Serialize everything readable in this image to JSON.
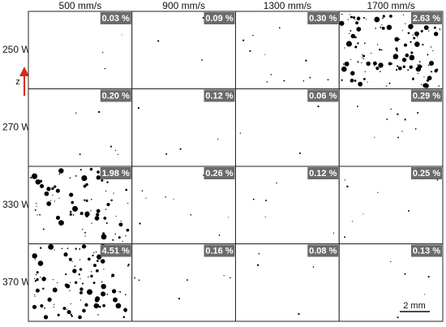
{
  "columns": [
    "500 mm/s",
    "900 mm/s",
    "1300 mm/s",
    "1700 mm/s"
  ],
  "rows": [
    {
      "label": "250 W",
      "porosity": [
        "0.03 %",
        "0.09 %",
        "0.30 %",
        "2.63 %"
      ]
    },
    {
      "label": "270 W",
      "porosity": [
        "0.20 %",
        "0.12 %",
        "0.06 %",
        "0.29 %"
      ]
    },
    {
      "label": "330 W",
      "porosity": [
        "1.98 %",
        "0.26 %",
        "0.12 %",
        "0.25 %"
      ]
    },
    {
      "label": "370 W",
      "porosity": [
        "4.51 %",
        "0.16 %",
        "0.08 %",
        "0.13 %"
      ]
    }
  ],
  "axis_label": "z",
  "scale_bar": "2 mm"
}
